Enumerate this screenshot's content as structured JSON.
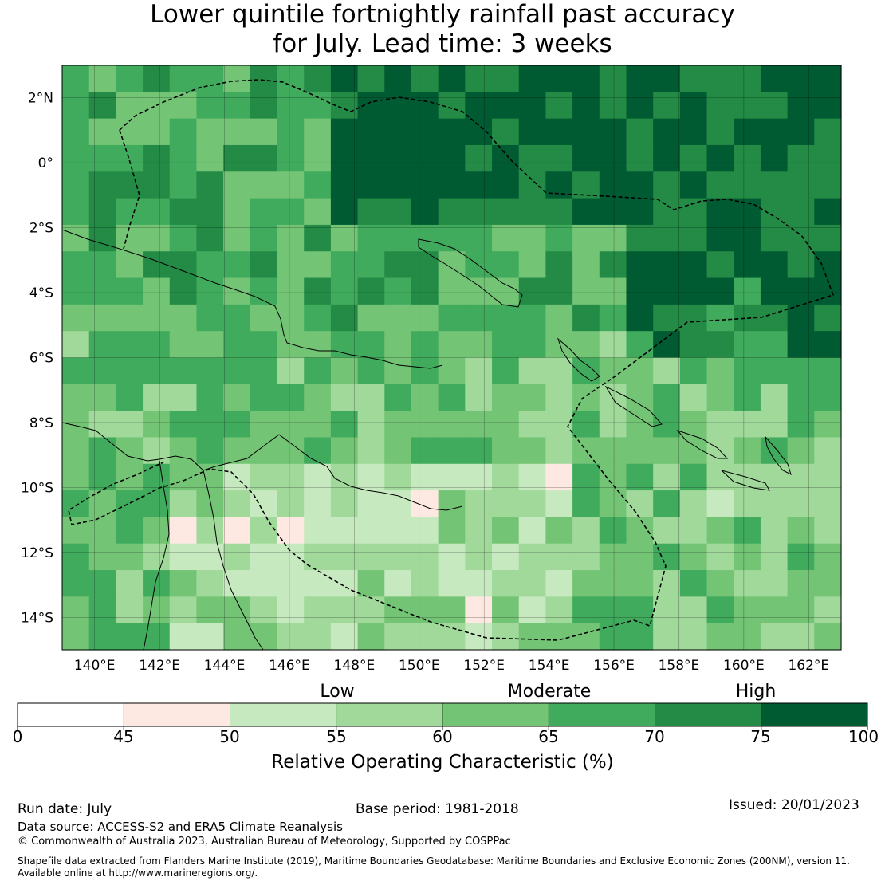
{
  "title": {
    "line1": "Lower quintile fortnightly rainfall past accuracy",
    "line2": "for July. Lead time: 3 weeks"
  },
  "map": {
    "lon_range": [
      139,
      163
    ],
    "lat_range": [
      -15,
      3
    ],
    "lon_ticks": [
      "140°E",
      "142°E",
      "144°E",
      "146°E",
      "148°E",
      "150°E",
      "152°E",
      "154°E",
      "156°E",
      "158°E",
      "160°E",
      "162°E"
    ],
    "lat_ticks": [
      "2°N",
      "0°",
      "2°S",
      "4°S",
      "6°S",
      "8°S",
      "10°S",
      "12°S",
      "14°S"
    ],
    "gridlines": true,
    "overlay": "EEZ maritime boundaries (dashed) and coastlines"
  },
  "colorbar": {
    "levels": [
      "Low",
      "Moderate",
      "High"
    ],
    "ticks": [
      "0",
      "45",
      "50",
      "55",
      "60",
      "65",
      "70",
      "75",
      "100"
    ],
    "colors": [
      "#ffffff",
      "#fde9e1",
      "#c7e9c0",
      "#a1d99b",
      "#74c476",
      "#41ab5d",
      "#238b45",
      "#005a32"
    ],
    "axis_label": "Relative Operating Characteristic (%)"
  },
  "footer": {
    "run_date": "Run date: July",
    "base_period": "Base period: 1981-2018",
    "issued": "Issued: 20/01/2023",
    "data_source": "Data source: ACCESS-S2 and ERA5 Climate Reanalysis",
    "copyright": "© Commonwealth of Australia 2023, Australian Bureau of Meteorology, Supported by COSPPac",
    "shapefile_line1": "Shapefile data extracted from Flanders Marine Institute (2019), Maritime Boundaries Geodatabase: Maritime Boundaries and Exclusive Economic Zones (200NM), version 11.",
    "shapefile_line2": "Available online at http://www.marineregions.org/."
  }
}
